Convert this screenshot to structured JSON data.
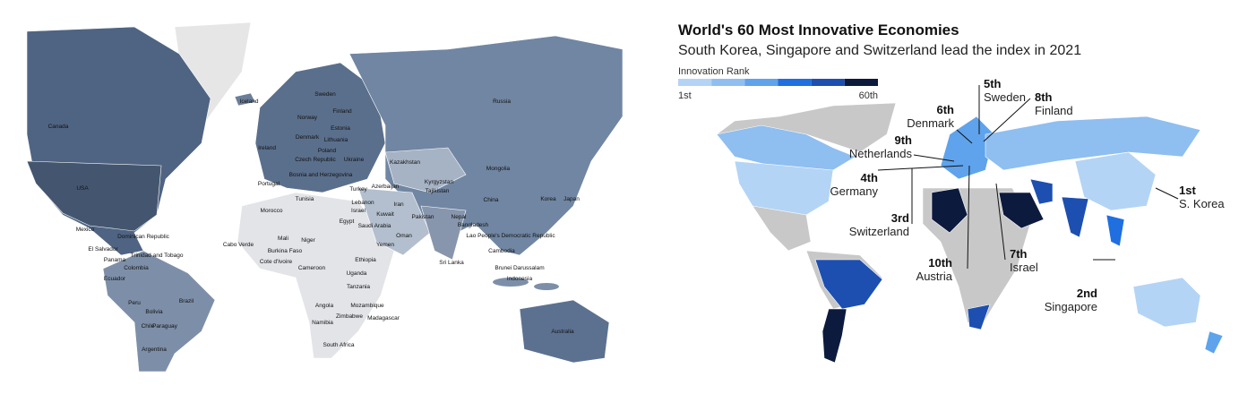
{
  "left_map": {
    "labels": [
      "Canada",
      "USA",
      "Mexico",
      "Dominican Republic",
      "El Salvador",
      "Trinidad and Tobago",
      "Panama",
      "Colombia",
      "Ecuador",
      "Peru",
      "Brazil",
      "Bolivia",
      "Chile",
      "Paraguay",
      "Argentina",
      "Iceland",
      "Ireland",
      "Norway",
      "Sweden",
      "Finland",
      "Estonia",
      "Denmark",
      "Lithuania",
      "Poland",
      "Czech Republic",
      "Ukraine",
      "Portugal",
      "Bosnia and Herzegovina",
      "Turkey",
      "Azerbaijan",
      "Kazakhstan",
      "Mongolia",
      "Kyrgyzstan",
      "Tajikistan",
      "Russia",
      "China",
      "Korea",
      "Japan",
      "Morocco",
      "Tunisia",
      "Lebanon",
      "Israel",
      "Iran",
      "Kuwait",
      "Pakistan",
      "Egypt",
      "Saudi Arabia",
      "Oman",
      "Yemen",
      "Nepal",
      "Bangladesh",
      "Lao People's Democratic Republic",
      "Cambodia",
      "Brunei Darussalam",
      "Indonesia",
      "Sri Lanka",
      "Mali",
      "Niger",
      "Cabo Verde",
      "Burkina Faso",
      "Cote d'Ivoire",
      "Cameroon",
      "Ethiopia",
      "Uganda",
      "Tanzania",
      "Angola",
      "Mozambique",
      "Zimbabwe",
      "Namibia",
      "Madagascar",
      "South Africa",
      "Australia"
    ]
  },
  "right_map": {
    "title": "World's 60 Most Innovative Economies",
    "subtitle": "South Korea, Singapore and Switzerland lead the index in 2021",
    "legend": {
      "title": "Innovation Rank",
      "colors": [
        "#b3d4f5",
        "#8fbef0",
        "#5ea3ec",
        "#1f6fe0",
        "#1d4fb0",
        "#0c1a3d"
      ],
      "min_label": "1st",
      "max_label": "60th"
    },
    "annotations": [
      {
        "rank": "5th",
        "country": "Sweden"
      },
      {
        "rank": "8th",
        "country": "Finland"
      },
      {
        "rank": "6th",
        "country": "Denmark"
      },
      {
        "rank": "9th",
        "country": "Netherlands"
      },
      {
        "rank": "4th",
        "country": "Germany"
      },
      {
        "rank": "3rd",
        "country": "Switzerland"
      },
      {
        "rank": "10th",
        "country": "Austria"
      },
      {
        "rank": "7th",
        "country": "Israel"
      },
      {
        "rank": "1st",
        "country": "S. Korea"
      },
      {
        "rank": "2nd",
        "country": "Singapore"
      }
    ]
  }
}
